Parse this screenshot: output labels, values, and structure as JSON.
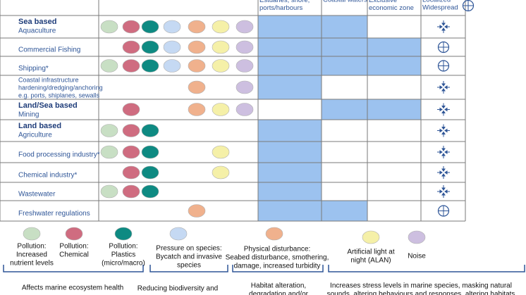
{
  "header": {
    "zones": [
      "Estuaries, shore, ports/harbours",
      "Coastal waters",
      "Exclusive economic zone"
    ],
    "extent": [
      "Localized",
      "Widespread"
    ]
  },
  "pressure_colors": [
    "#c8dfc4",
    "#cf6c80",
    "#0e8a82",
    "#c5d9f3",
    "#f0b18d",
    "#f5f0a8",
    "#cdbfe0"
  ],
  "rows": [
    {
      "group": "Sea based",
      "label": [
        "Aquaculture"
      ],
      "pressures": [
        true,
        true,
        true,
        true,
        true,
        true,
        true
      ],
      "zones": [
        true,
        true,
        false
      ],
      "widespread": false
    },
    {
      "label": [
        "Commercial Fishing"
      ],
      "pressures": [
        false,
        true,
        true,
        true,
        true,
        true,
        true
      ],
      "zones": [
        true,
        true,
        true
      ],
      "widespread": true
    },
    {
      "label": [
        "Shipping*"
      ],
      "pressures": [
        true,
        true,
        true,
        true,
        true,
        true,
        true
      ],
      "zones": [
        true,
        true,
        true
      ],
      "widespread": true
    },
    {
      "label": [
        "Coastal infrastructure",
        "hardening/dredging/anchoring",
        "e.g. ports, shiplanes, sewalls"
      ],
      "pressures": [
        false,
        false,
        false,
        false,
        true,
        false,
        true
      ],
      "zones": [
        true,
        false,
        false
      ],
      "widespread": false
    },
    {
      "group": "Land/Sea based",
      "label": [
        "Mining"
      ],
      "pressures": [
        false,
        true,
        false,
        false,
        true,
        true,
        true
      ],
      "zones": [
        false,
        true,
        true
      ],
      "widespread": false
    },
    {
      "group": "Land based",
      "label": [
        "Agriculture"
      ],
      "pressures": [
        true,
        true,
        true,
        false,
        false,
        false,
        false
      ],
      "zones": [
        true,
        false,
        false
      ],
      "widespread": false
    },
    {
      "label": [
        "Food processing industry*"
      ],
      "pressures": [
        true,
        true,
        true,
        false,
        false,
        true,
        false
      ],
      "zones": [
        true,
        false,
        false
      ],
      "widespread": false
    },
    {
      "label": [
        "Chemical industry*"
      ],
      "pressures": [
        false,
        true,
        true,
        false,
        false,
        true,
        false
      ],
      "zones": [
        true,
        false,
        false
      ],
      "widespread": false
    },
    {
      "label": [
        "Wastewater"
      ],
      "pressures": [
        true,
        true,
        true,
        false,
        false,
        false,
        false
      ],
      "zones": [
        true,
        false,
        false
      ],
      "widespread": false
    },
    {
      "label": [
        "Freshwater regulations"
      ],
      "pressures": [
        false,
        false,
        false,
        false,
        true,
        false,
        false
      ],
      "zones": [
        true,
        true,
        false
      ],
      "widespread": true
    }
  ],
  "legend": [
    [
      "Pollution:",
      "Increased",
      "nutrient levels"
    ],
    [
      "Pollution:",
      "Chemical"
    ],
    [
      "Pollution:",
      "Plastics",
      "(micro/macro)"
    ],
    [
      "Pressure on species:",
      "Bycatch and invasive",
      "species"
    ],
    [
      "Physical disturbance:",
      "Seabed disturbance, smothering,",
      "damage, increased turbidity"
    ],
    [
      "Artificial light at",
      "night (ALAN)"
    ],
    [
      "Noise"
    ]
  ],
  "effects": [
    [
      "Affects marine ecosystem health"
    ],
    [
      "Reducing biodiversity and"
    ],
    [
      "Habitat alteration,",
      "degradation and/or"
    ],
    [
      "Increases stress levels in marine species, masking natural",
      "sounds, altering behaviours and responses, altering habitats"
    ]
  ]
}
